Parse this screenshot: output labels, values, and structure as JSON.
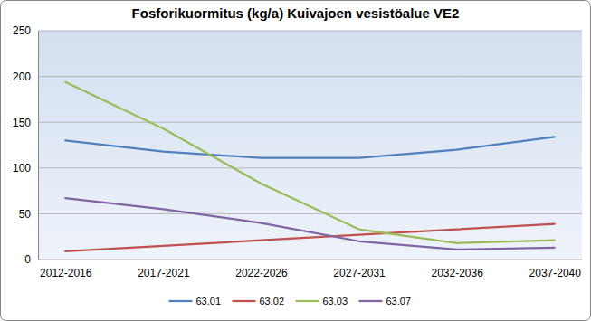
{
  "chart_data": {
    "type": "line",
    "title": "Fosforikuormitus (kg/a) Kuivajoen vesistöalue VE2",
    "categories": [
      "2012-2016",
      "2017-2021",
      "2022-2026",
      "2027-2031",
      "2032-2036",
      "2037-2040"
    ],
    "series": [
      {
        "name": "63.01",
        "color": "#4f81bd",
        "values": [
          130,
          118,
          111,
          111,
          120,
          134
        ]
      },
      {
        "name": "63.02",
        "color": "#c0504d",
        "values": [
          9,
          15,
          21,
          27,
          33,
          39
        ]
      },
      {
        "name": "63.03",
        "color": "#9bbb59",
        "values": [
          194,
          143,
          83,
          33,
          18,
          21
        ]
      },
      {
        "name": "63.07",
        "color": "#8064a2",
        "values": [
          67,
          55,
          40,
          20,
          11,
          13
        ]
      }
    ],
    "ylim": [
      0,
      250
    ],
    "yticks": [
      0,
      50,
      100,
      150,
      200,
      250
    ],
    "grid": true,
    "legend": "bottom"
  }
}
